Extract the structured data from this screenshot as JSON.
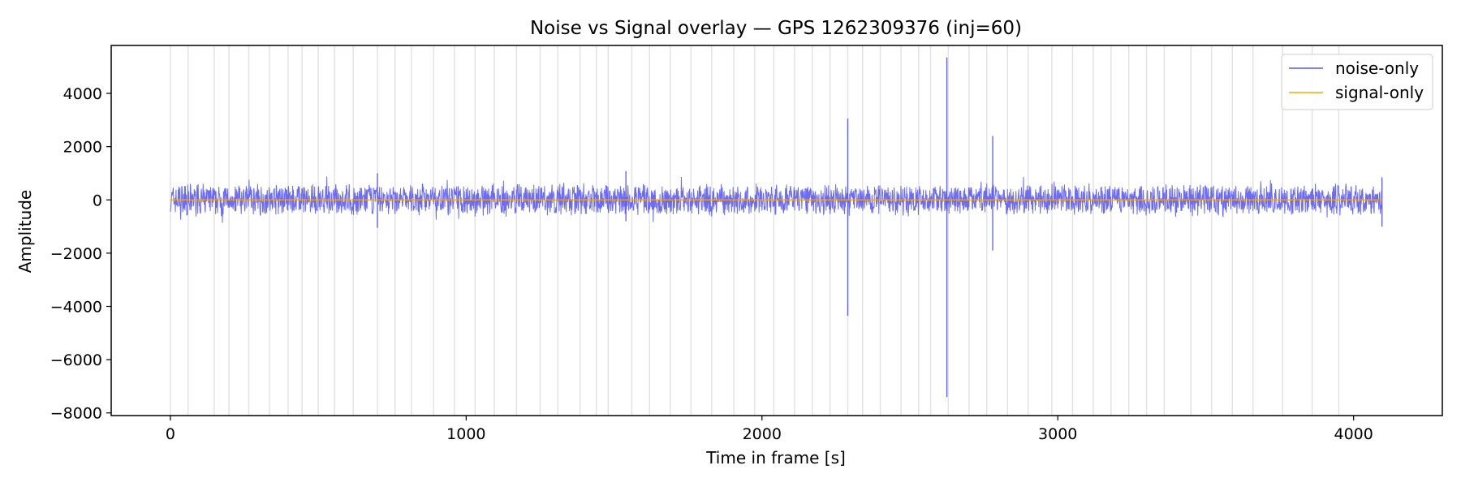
{
  "chart_data": {
    "type": "line",
    "title": "Noise vs Signal overlay — GPS 1262309376 (inj=60)",
    "xlabel": "Time in frame [s]",
    "ylabel": "Amplitude",
    "xlim": [
      -200,
      4300
    ],
    "ylim": [
      -8100,
      5800
    ],
    "xticks": [
      0,
      1000,
      2000,
      3000,
      4000
    ],
    "xtick_labels": [
      "0",
      "1000",
      "2000",
      "3000",
      "4000"
    ],
    "yticks": [
      -8000,
      -6000,
      -4000,
      -2000,
      0,
      2000,
      4000
    ],
    "ytick_labels": [
      "−8000",
      "−6000",
      "−4000",
      "−2000",
      "0",
      "2000",
      "4000"
    ],
    "grid": false,
    "legend": "top-right",
    "x_range": [
      0,
      4096
    ],
    "injection_markers": {
      "count": 60,
      "color": "#e3e3e3",
      "x": [
        0,
        60,
        148,
        198,
        265,
        335,
        398,
        445,
        500,
        555,
        618,
        700,
        760,
        815,
        890,
        960,
        1030,
        1095,
        1170,
        1250,
        1310,
        1385,
        1440,
        1480,
        1560,
        1620,
        1690,
        1760,
        1830,
        1905,
        1975,
        2040,
        2110,
        2170,
        2230,
        2290,
        2340,
        2400,
        2470,
        2530,
        2570,
        2630,
        2700,
        2760,
        2830,
        2900,
        2980,
        3050,
        3120,
        3180,
        3240,
        3300,
        3360,
        3450,
        3520,
        3590,
        3660,
        3760,
        3860,
        3950
      ]
    },
    "series": [
      {
        "name": "noise-only",
        "color": "#5b5bf5",
        "envelope": {
          "positive": 650,
          "negative": -650
        },
        "spikes": [
          {
            "x": 2290,
            "max": 3050,
            "min": -4350
          },
          {
            "x": 2625,
            "max": 5350,
            "min": -7400
          },
          {
            "x": 2780,
            "max": 2400,
            "min": -1900
          },
          {
            "x": 700,
            "max": 1000,
            "min": -1050
          },
          {
            "x": 1540,
            "max": 1080,
            "min": -800
          },
          {
            "x": 4096,
            "max": 850,
            "min": -1000
          }
        ]
      },
      {
        "name": "signal-only",
        "color": "#ffa500",
        "values": [
          [
            0,
            0
          ],
          [
            4096,
            0
          ]
        ]
      }
    ]
  }
}
